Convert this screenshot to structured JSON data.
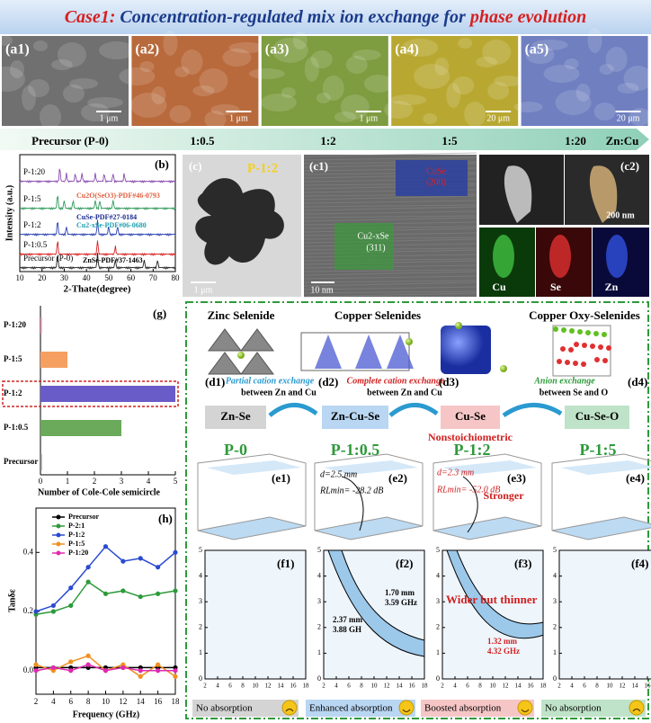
{
  "header": {
    "prefix": "Case1:",
    "main": " Concentration-regulated mix ion exchange for ",
    "highlight": "phase evolution"
  },
  "sem": [
    {
      "label": "(a1)",
      "scale": "1 μm"
    },
    {
      "label": "(a2)",
      "scale": "1 μm"
    },
    {
      "label": "(a3)",
      "scale": "1 μm"
    },
    {
      "label": "(a4)",
      "scale": "20 μm"
    },
    {
      "label": "(a5)",
      "scale": "20 μm"
    }
  ],
  "ratio_bar": {
    "labels": [
      "Precursor (P-0)",
      "1:0.5",
      "1:2",
      "1:5",
      "1:20"
    ],
    "axis": "Zn:Cu"
  },
  "xrd": {
    "label": "(b)",
    "samples": [
      "P-1:20",
      "P-1:5",
      "P-1:2",
      "P-1:0.5",
      "Precursor (P-0)"
    ],
    "refs": [
      "Cu2O(SeO3)-PDF#46-0793",
      "CuSe-PDF#27-0184",
      "Cu2-xSe-PDF#06-0680",
      "ZnSe-PDF#37-1463"
    ],
    "xlabel": "2-Thate(degree)",
    "ylabel": "Intensity (a.u.)",
    "xlim": [
      10,
      80
    ],
    "xticks": [
      10,
      20,
      30,
      40,
      50,
      60,
      70,
      80
    ]
  },
  "tem": {
    "c": "(c)",
    "c_tag": "P-1:2",
    "c_scale": "1 μm",
    "c1": "(c1)",
    "c1_top": [
      "CuSe",
      "(200)"
    ],
    "c1_bottom": [
      "Cu2-xSe",
      "(311)"
    ],
    "c1_scale": "10 nm",
    "c2": "(c2)",
    "c2_scale": "200 nm",
    "elements": [
      "Cu",
      "Se",
      "Zn"
    ]
  },
  "structures": {
    "names": [
      "Zinc Selenide",
      "Copper Selenides",
      "Copper Oxy-Selenides"
    ],
    "labels": [
      "(d1)",
      "(d2)",
      "(d3)",
      "(d4)"
    ],
    "exchanges": [
      {
        "title": "Partial cation exchange",
        "sub": "between  Zn and Cu"
      },
      {
        "title": "Complete cation exchange",
        "sub": "between  Zn and Cu"
      },
      {
        "title": "Anion exchange",
        "sub": "between  Se and O"
      }
    ]
  },
  "phases": {
    "names": [
      "Zn-Se",
      "Zn-Cu-Se",
      "Cu-Se",
      "Cu-Se-O"
    ],
    "note": "Nonstoichiometric",
    "samples": [
      "P-0",
      "P-1:0.5",
      "P-1:2",
      "P-1:5"
    ]
  },
  "e_panels": {
    "labels": [
      "(e1)",
      "(e2)",
      "(e3)",
      "(e4)"
    ],
    "e2": [
      "d=2.5 mm",
      "RLmin= -28.2 dB"
    ],
    "e3": [
      "d=2.3 mm",
      "RLmin= -52.0 dB"
    ],
    "e3_note": "Stronger"
  },
  "f_panels": {
    "labels": [
      "(f1)",
      "(f2)",
      "(f3)",
      "(f4)"
    ],
    "xlim": [
      2,
      18
    ],
    "ylim": [
      0,
      5
    ],
    "xticks": [
      2,
      4,
      6,
      8,
      10,
      12,
      14,
      16,
      18
    ],
    "yticks": [
      0,
      1,
      2,
      3,
      4,
      5
    ],
    "f2": [
      "1.70 mm",
      "3.59 GHz",
      "2.37 mm",
      "3.88 GH"
    ],
    "f3_note": "Wider but thinner",
    "f3": [
      "1.32 mm",
      "4.32 GHz"
    ]
  },
  "verdicts": [
    "No absorption",
    "Enhanced absorption",
    "Boosted absorption",
    "No absorption"
  ],
  "chart_data": [
    {
      "type": "bar",
      "label": "(g)",
      "categories": [
        "P-1:20",
        "P-1:5",
        "P-1:2",
        "P-1:0.5",
        "Precursor"
      ],
      "values": [
        0.05,
        1,
        5,
        3,
        0.05
      ],
      "colors": [
        "#e58aa8",
        "#f5a060",
        "#6a5cc8",
        "#6aaa5a",
        "#888888"
      ],
      "xlim": [
        0,
        5
      ],
      "xticks": [
        0,
        1,
        2,
        3,
        4,
        5
      ],
      "xlabel": "Number of Cole-Cole semicircle"
    },
    {
      "type": "line",
      "label": "(h)",
      "x": [
        2,
        4,
        6,
        8,
        10,
        12,
        14,
        16,
        18
      ],
      "xlim": [
        2,
        18
      ],
      "xticks": [
        2,
        4,
        6,
        8,
        10,
        12,
        14,
        16,
        18
      ],
      "ylim": [
        -0.08,
        0.55
      ],
      "yticks": [
        {
          "value": 0,
          "label": "0.0"
        },
        {
          "value": 0.2,
          "label": "0.2"
        },
        {
          "value": 0.4,
          "label": "0.4"
        }
      ],
      "xlabel": "Frequency (GHz)",
      "ylabel": "Tanδε",
      "series": [
        {
          "name": "Precursor",
          "color": "#000000",
          "values": [
            0.01,
            0.01,
            0.01,
            0.01,
            0.01,
            0.01,
            0.01,
            0.01,
            0.01
          ]
        },
        {
          "name": "P-2:1",
          "color": "#2e9a3a",
          "values": [
            0.19,
            0.2,
            0.22,
            0.3,
            0.26,
            0.27,
            0.25,
            0.26,
            0.27
          ]
        },
        {
          "name": "P-1:2",
          "color": "#2a4ad0",
          "values": [
            0.2,
            0.22,
            0.28,
            0.35,
            0.42,
            0.37,
            0.38,
            0.35,
            0.4
          ]
        },
        {
          "name": "P-1:5",
          "color": "#f09020",
          "values": [
            0.02,
            0.0,
            0.03,
            0.05,
            0.0,
            0.02,
            -0.02,
            0.02,
            -0.02
          ]
        },
        {
          "name": "P-1:20",
          "color": "#e02ab0",
          "values": [
            0.0,
            0.01,
            0.0,
            0.02,
            0.0,
            0.01,
            0.0,
            0.0,
            0.0
          ]
        }
      ]
    }
  ]
}
